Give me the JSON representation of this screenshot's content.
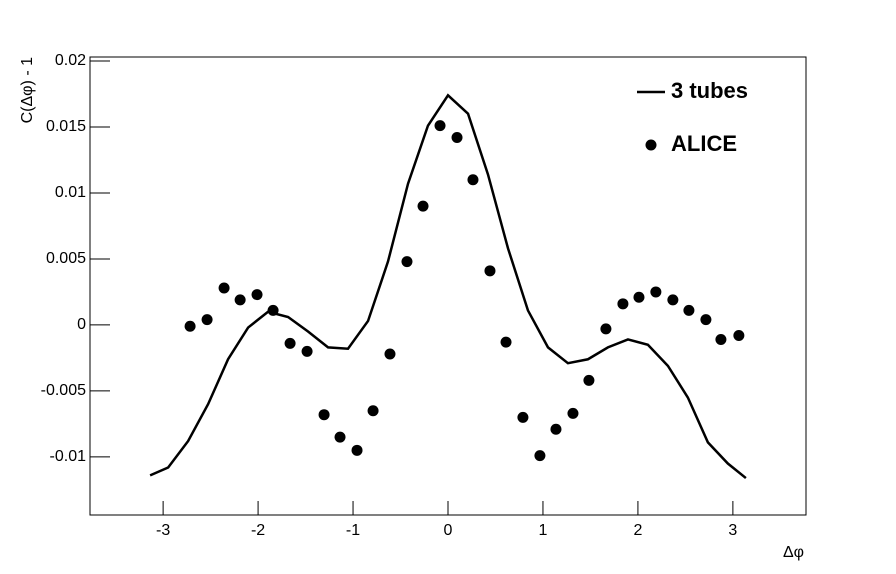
{
  "chart_data": {
    "type": "line",
    "x_label": "Δφ",
    "y_label": "C(Δφ) - 1",
    "xlim": [
      -3.77,
      3.77
    ],
    "ylim": [
      -0.0144,
      0.0203
    ],
    "xticks": [
      -3,
      -2,
      -1,
      0,
      1,
      2,
      3
    ],
    "yticks": [
      -0.01,
      -0.005,
      0,
      0.005,
      0.01,
      0.015,
      0.02
    ],
    "legend": "top-right",
    "series": [
      {
        "name": "3 tubes",
        "type": "line",
        "color": "#000000",
        "x": [
          -3.137,
          -2.947,
          -2.737,
          -2.526,
          -2.316,
          -2.105,
          -1.895,
          -1.684,
          -1.474,
          -1.263,
          -1.053,
          -0.842,
          -0.632,
          -0.421,
          -0.211,
          0,
          0.211,
          0.421,
          0.632,
          0.842,
          1.053,
          1.263,
          1.474,
          1.684,
          1.895,
          2.105,
          2.316,
          2.526,
          2.737,
          2.947,
          3.137
        ],
        "values": [
          -0.0114,
          -0.0108,
          -0.0088,
          -0.006,
          -0.0026,
          -0.0002,
          0.001,
          0.0006,
          -0.0005,
          -0.0017,
          -0.0018,
          0.0003,
          0.0048,
          0.0107,
          0.0151,
          0.0174,
          0.016,
          0.0114,
          0.0058,
          0.0011,
          -0.0017,
          -0.0029,
          -0.0026,
          -0.0017,
          -0.0011,
          -0.0015,
          -0.0031,
          -0.0055,
          -0.0089,
          -0.0105,
          -0.0116
        ]
      },
      {
        "name": "ALICE",
        "type": "scatter",
        "color": "#000000",
        "x": [
          -2.716,
          -2.537,
          -2.358,
          -2.189,
          -2.011,
          -1.842,
          -1.663,
          -1.484,
          -1.305,
          -1.137,
          -0.958,
          -0.789,
          -0.611,
          -0.432,
          -0.263,
          -0.084,
          0.095,
          0.263,
          0.442,
          0.611,
          0.789,
          0.968,
          1.137,
          1.316,
          1.484,
          1.663,
          1.842,
          2.011,
          2.189,
          2.368,
          2.537,
          2.716,
          2.874,
          3.063
        ],
        "values": [
          -0.0001,
          0.0004,
          0.0028,
          0.0019,
          0.0023,
          0.0011,
          -0.0014,
          -0.002,
          -0.0068,
          -0.0085,
          -0.0095,
          -0.0065,
          -0.0022,
          0.0048,
          0.009,
          0.0151,
          0.0142,
          0.011,
          0.0041,
          -0.0013,
          -0.007,
          -0.0099,
          -0.0079,
          -0.0067,
          -0.0042,
          -0.0003,
          0.0016,
          0.0021,
          0.0025,
          0.0019,
          0.0011,
          0.0004,
          -0.0011,
          -0.0008
        ]
      }
    ]
  }
}
